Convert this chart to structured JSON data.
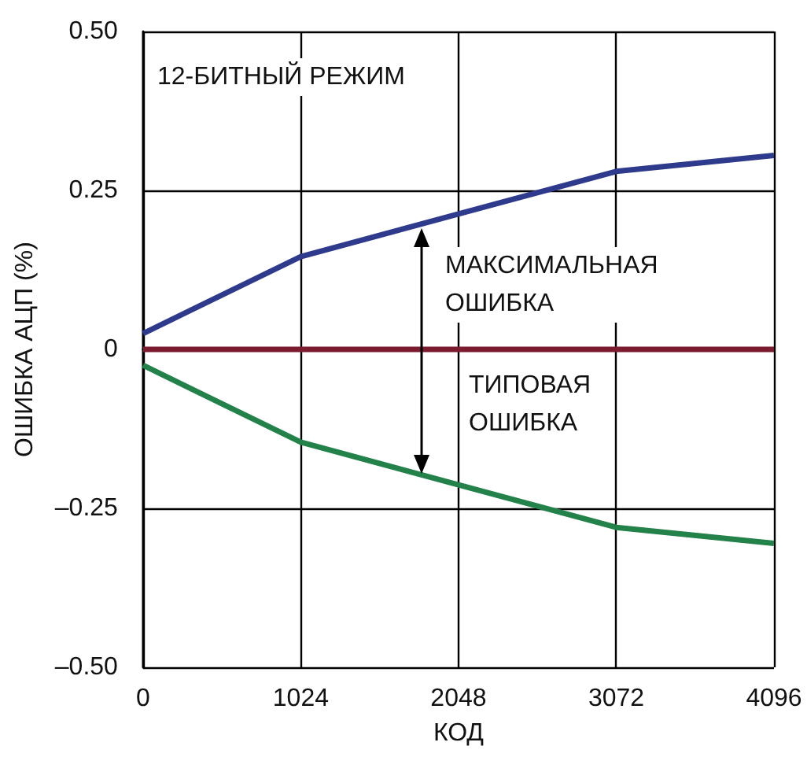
{
  "chart_data": {
    "type": "line",
    "xlabel": "КОД",
    "ylabel": "ОШИБКА АЦП (%)",
    "x": [
      0,
      1024,
      2048,
      3072,
      4096
    ],
    "series": [
      {
        "color": "#2e3a8c",
        "values": [
          0.025,
          0.146,
          0.213,
          0.28,
          0.305
        ]
      },
      {
        "color": "#7b1c2e",
        "values": [
          0,
          0,
          0,
          0,
          0
        ]
      },
      {
        "color": "#23814a",
        "values": [
          -0.025,
          -0.146,
          -0.213,
          -0.28,
          -0.305
        ]
      }
    ],
    "xlim": [
      0,
      4096
    ],
    "xticks": [
      0,
      1024,
      2048,
      3072,
      4096
    ],
    "ylim": [
      -0.5,
      0.5
    ],
    "yticks": [
      {
        "value": -0.5,
        "label": "–0.50"
      },
      {
        "value": -0.25,
        "label": "–0.25"
      },
      0,
      {
        "value": 0.25,
        "label": "0.25"
      },
      {
        "value": 0.5,
        "label": "0.50"
      }
    ],
    "grid": true,
    "marker": "none",
    "line_style": "solid",
    "annotations": [
      "12-БИТНЫЙ РЕЖИМ",
      "МАКСИМАЛЬНАЯ\nОШИБКА",
      "ТИПОВАЯ\nОШИБКА"
    ]
  }
}
